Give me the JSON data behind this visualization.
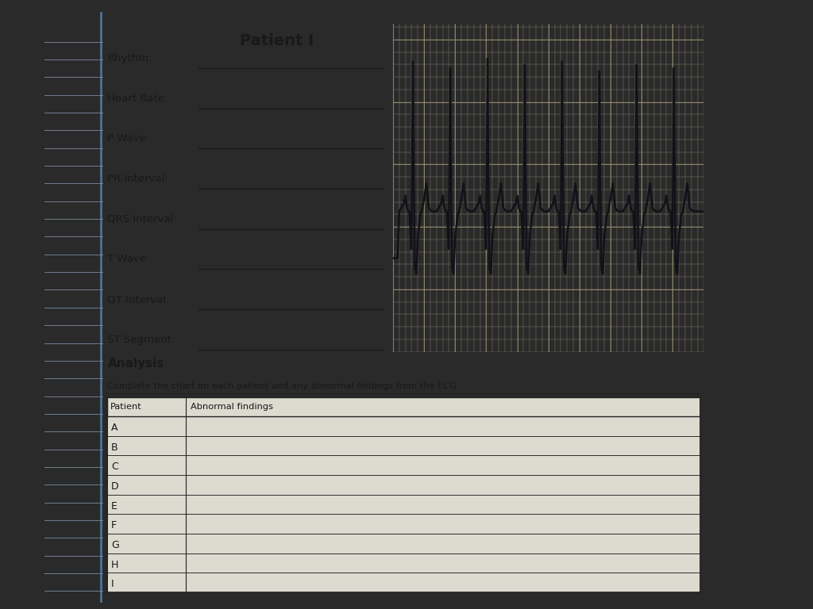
{
  "title": "Patient I",
  "fields": [
    "Rhythm:",
    "Heart Rate:",
    "P Wave:",
    "PR Interval:",
    "QRS Interval:",
    "T Wave:",
    "QT Interval:",
    "ST Segment:"
  ],
  "analysis_title": "Analysis",
  "analysis_subtitle": "Complete the chart on each patient and any abnormal findings from the ECG",
  "table_headers": [
    "Patient",
    "Abnormal findings"
  ],
  "table_rows": [
    "A",
    "B",
    "C",
    "D",
    "E",
    "F",
    "G",
    "H",
    "I"
  ],
  "outer_bg": "#2a2a2a",
  "paper_bg": "#e8e5d8",
  "notebook_line_color": "#a0b8d0",
  "notebook_margin_color": "#6090c0",
  "ecg_bg": "#ddd9c0",
  "ecg_grid_major": "#9a9070",
  "ecg_grid_minor": "#b8b098",
  "ecg_line_color": "#111118",
  "text_color": "#1a1818",
  "underline_color": "#1a1818",
  "table_border_color": "#222222",
  "table_cell_bg": "#dddad0",
  "dark_corner_right": "#1a1a1a",
  "dark_corner_bottom": "#1a1a1a"
}
